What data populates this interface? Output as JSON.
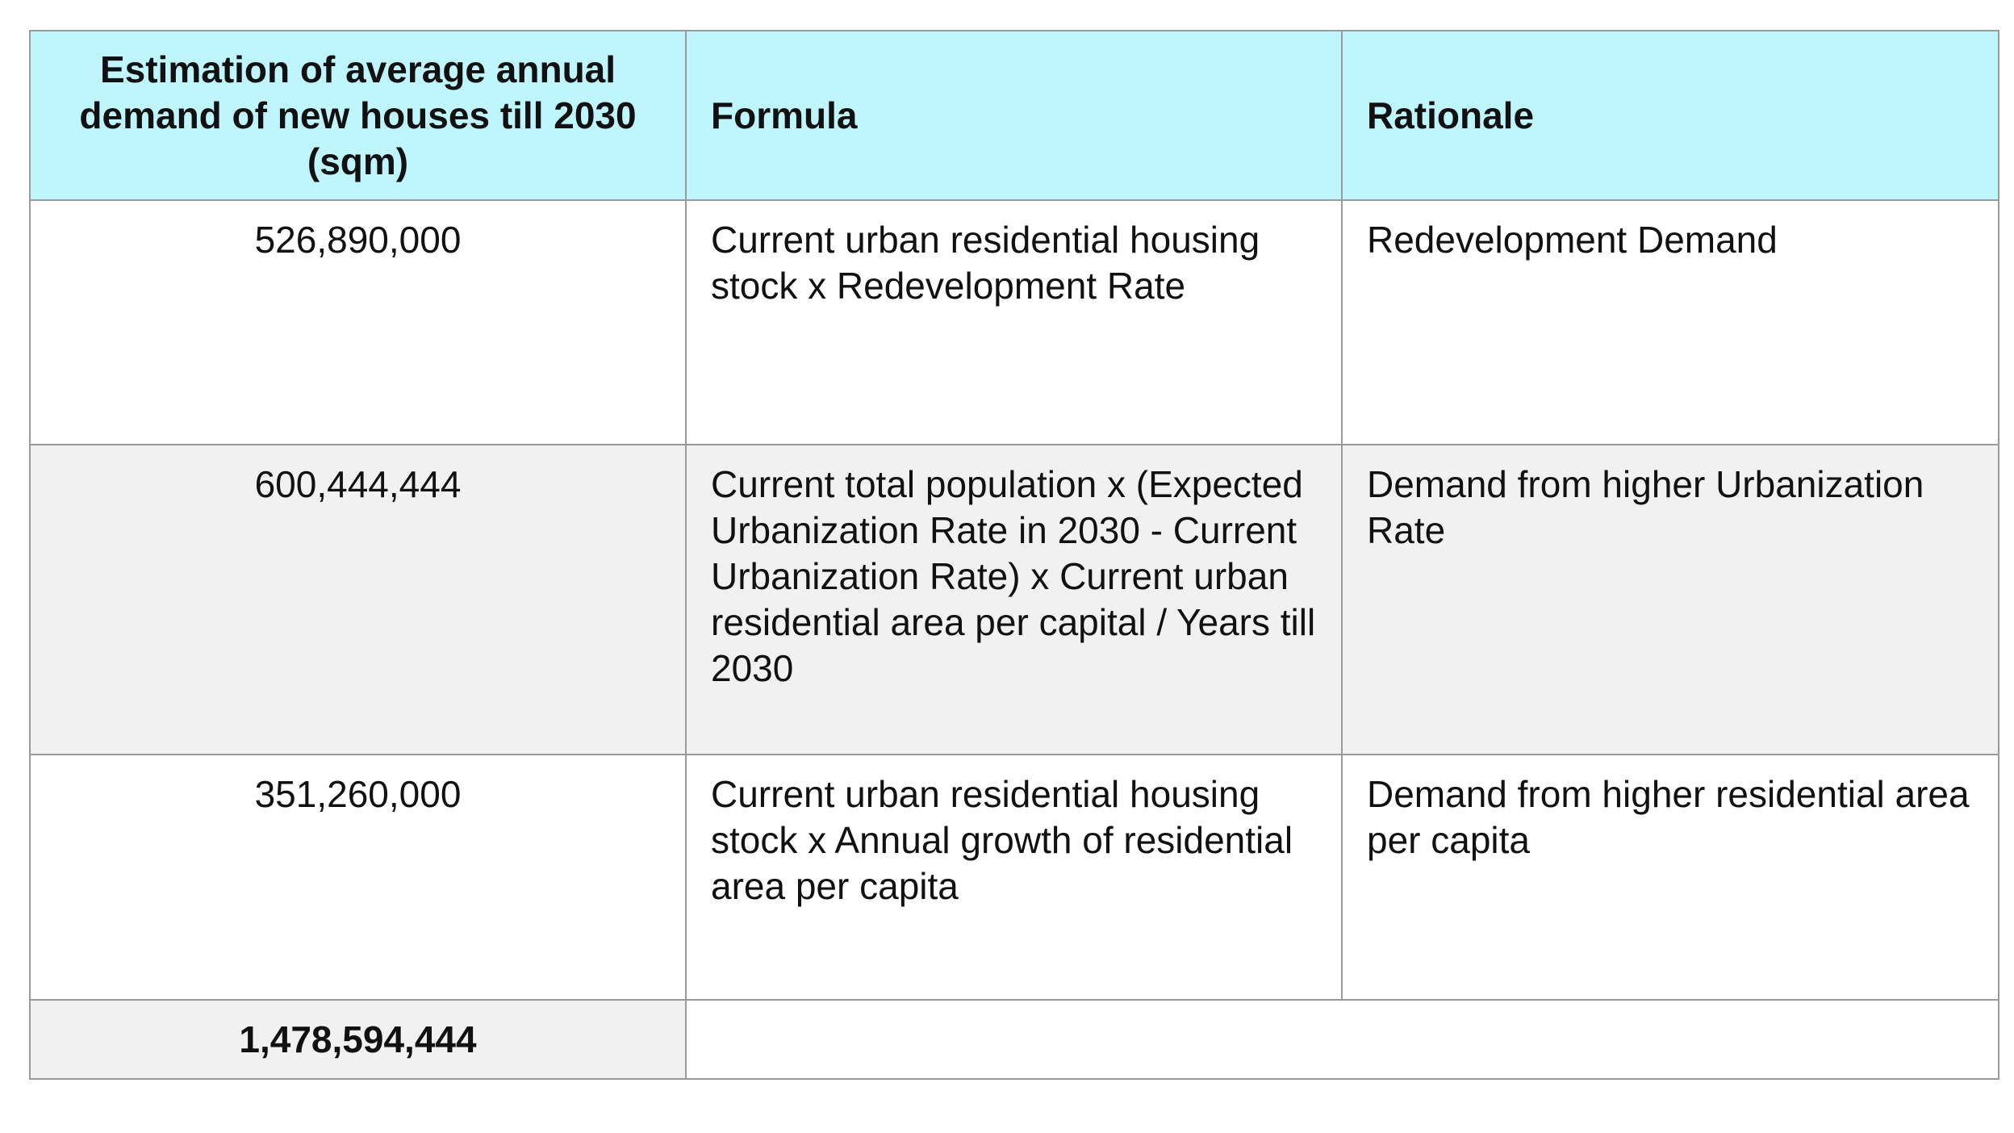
{
  "table": {
    "headers": [
      "Estimation of average annual demand of new houses till 2030 (sqm)",
      "Formula",
      "Rationale"
    ],
    "rows": [
      {
        "amount": "526,890,000",
        "formula": "Current urban residential housing stock x Redevelopment Rate",
        "rationale": "Redevelopment Demand"
      },
      {
        "amount": "600,444,444",
        "formula": "Current total population x (Expected Urbanization Rate in 2030 - Current Urbanization Rate) x Current urban residential area per capital / Years till 2030",
        "rationale": "Demand from higher Urbanization Rate"
      },
      {
        "amount": "351,260,000",
        "formula": "Current urban residential housing stock x Annual growth of residential area per capita",
        "rationale": "Demand from higher residential area per capita"
      }
    ],
    "total": "1,478,594,444"
  }
}
